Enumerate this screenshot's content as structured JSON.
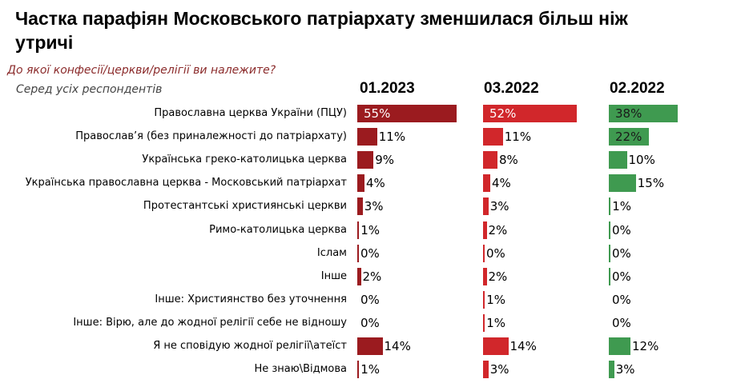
{
  "chart_data": {
    "type": "bar",
    "orientation": "horizontal",
    "title": "Частка парафіян Московського патріархату зменшилася більш ніж утричі",
    "question": "До якої конфесії/церкви/релігії ви належите?",
    "subtitle": "Серед усіх респондентів",
    "categories": [
      "Православна церква України (ПЦУ)",
      "Православ’я (без приналежності до патріархату)",
      "Українська греко-католицька церква",
      "Українська православна церква - Московський патріархат",
      "Протестантські християнські церкви",
      "Римо-католицька церква",
      "Іслам",
      "Інше",
      "Інше: Християнство без уточнення",
      "Інше: Вірю, але до жодної релігії  себе не відношу",
      "Я не сповідую жодної релігії\\атеїст",
      "Не знаю\\Відмова"
    ],
    "series": [
      {
        "name": "01.2023",
        "color": "#9B1B1F",
        "label_color_inside": "#ffffff",
        "values": [
          55,
          11,
          9,
          4,
          3,
          1,
          0,
          2,
          0,
          0,
          14,
          1
        ],
        "bar_visible": [
          true,
          true,
          true,
          true,
          true,
          true,
          true,
          true,
          false,
          false,
          true,
          true
        ]
      },
      {
        "name": "03.2022",
        "color": "#D1272B",
        "label_color_inside": "#ffffff",
        "values": [
          52,
          11,
          8,
          4,
          3,
          2,
          0,
          2,
          1,
          1,
          14,
          3
        ],
        "bar_visible": [
          true,
          true,
          true,
          true,
          true,
          true,
          true,
          true,
          true,
          true,
          true,
          true
        ]
      },
      {
        "name": "02.2022",
        "color": "#3F9A50",
        "label_color_inside": "#1a1a1a",
        "values": [
          38,
          22,
          10,
          15,
          1,
          0,
          0,
          0,
          0,
          0,
          12,
          3
        ],
        "bar_visible": [
          true,
          true,
          true,
          true,
          true,
          true,
          true,
          true,
          false,
          false,
          true,
          true
        ]
      }
    ],
    "unit": "%",
    "xlim": [
      0,
      60
    ]
  }
}
